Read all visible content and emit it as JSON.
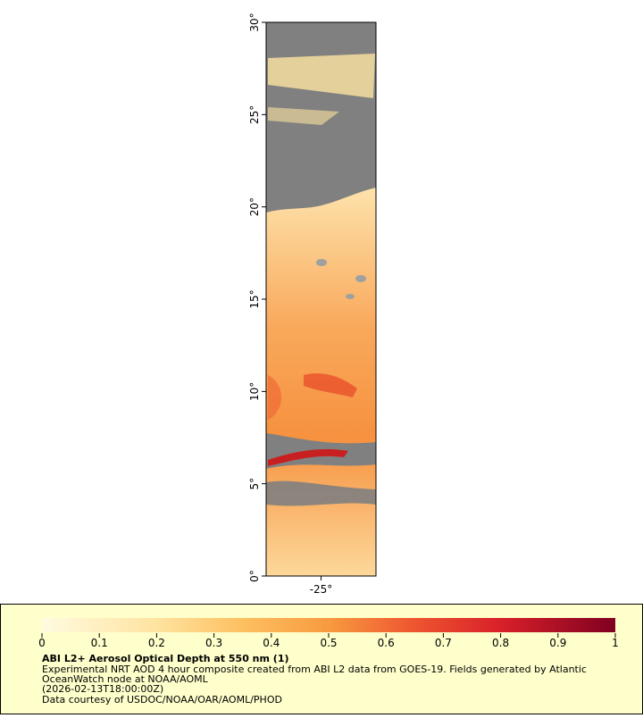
{
  "map": {
    "yaxis": {
      "lim": [
        0,
        30
      ],
      "ticks": [
        {
          "value": 0,
          "label": "0°"
        },
        {
          "value": 5,
          "label": "5°"
        },
        {
          "value": 10,
          "label": "10°"
        },
        {
          "value": 15,
          "label": "15°"
        },
        {
          "value": 20,
          "label": "20°"
        },
        {
          "value": 25,
          "label": "25°"
        },
        {
          "value": 30,
          "label": "30°"
        }
      ]
    },
    "xaxis": {
      "lim": [
        -28,
        -22
      ],
      "ticks": [
        {
          "value": -25,
          "label": "-25°"
        }
      ]
    },
    "legend": {
      "colorbar": {
        "lim": [
          0,
          1
        ],
        "ticks": [
          0,
          0.1,
          0.2,
          0.3,
          0.4,
          0.5,
          0.6,
          0.7,
          0.8,
          0.9,
          1
        ]
      },
      "title": "ABI L2+ Aerosol Optical Depth at 550 nm (1)",
      "lines": [
        "Experimental NRT AOD 4 hour composite created from ABI L2 data from GOES-19. Fields generated by Atlantic",
        "OceanWatch node at NOAA/AOML",
        "(2026-02-13T18:00:00Z)",
        "Data courtesy of USDOC/NOAA/OAR/AOML/PHOD"
      ]
    }
  }
}
